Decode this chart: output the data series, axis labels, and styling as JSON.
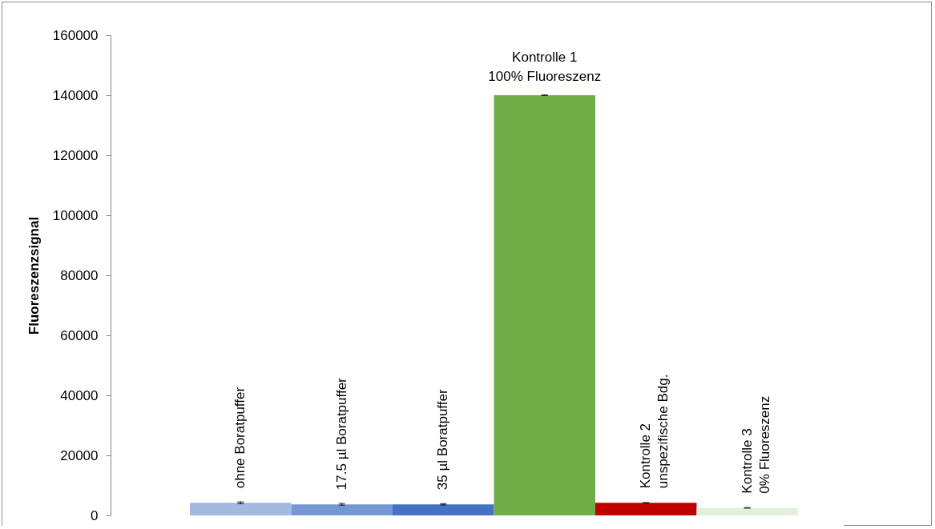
{
  "chart_data": {
    "type": "bar",
    "ylabel": "Fluoreszenzsignal",
    "categories": [
      "ohne Boratpuffer",
      "17.5 µl Boratpuffer",
      "35 µl Boratpuffer",
      "Kontrolle 1\n100% Fluoreszenz",
      "Kontrolle 2\nunspezifische Bdg.",
      "Kontrolle 3\n0% Fluoreszenz"
    ],
    "values": [
      4200,
      3700,
      3700,
      140000,
      4200,
      2500
    ],
    "errors": [
      300,
      300,
      200,
      100,
      100,
      100
    ],
    "colors": [
      "#a2b9e2",
      "#7597d2",
      "#4472c4",
      "#70ad47",
      "#c00000",
      "#e2efda"
    ],
    "ylim": [
      0,
      160000
    ],
    "yticks": [
      0,
      20000,
      40000,
      60000,
      80000,
      100000,
      120000,
      140000,
      160000
    ],
    "grid": false,
    "legend": false
  }
}
